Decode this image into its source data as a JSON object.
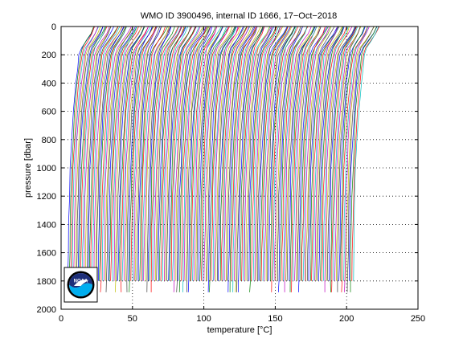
{
  "chart_data": {
    "type": "line",
    "title": "WMO ID 3900496, internal ID 1666, 17−Oct−2018",
    "xlabel": "temperature [°C]",
    "ylabel": "pressure [dbar]",
    "xlim": [
      0,
      250
    ],
    "ylim": [
      0,
      2000
    ],
    "y_reversed": true,
    "x_ticks": [
      "0",
      "50",
      "100",
      "150",
      "200",
      "250"
    ],
    "y_ticks": [
      "0",
      "200",
      "400",
      "600",
      "800",
      "1000",
      "1200",
      "1400",
      "1600",
      "1800",
      "2000"
    ],
    "grid": true,
    "grid_style": "dotted",
    "series_colors": [
      "#0000ff",
      "#008000",
      "#ff0000",
      "#00bfbf",
      "#bf00bf",
      "#bfbf00",
      "#404040"
    ],
    "profile_description": "waterfall of offset temperature profiles",
    "profile_count": 200,
    "profile_offset_start": 3,
    "profile_offset_end": 203,
    "profile_shape": {
      "pressure": [
        0,
        50,
        100,
        150,
        200,
        300,
        400,
        600,
        800,
        1000,
        1200,
        1400,
        1600,
        1800,
        1880
      ],
      "temperature_anomaly": [
        19,
        17,
        14,
        11,
        9.6,
        8.4,
        7.2,
        5.4,
        4.3,
        3.4,
        2.8,
        2.4,
        2.05,
        1.8,
        1.7
      ]
    },
    "logo": {
      "text": "NOAA",
      "outer_color": "#000000",
      "top_color": "#1e2f7a",
      "bottom_color": "#00aeef",
      "icon": "noaa-logo-icon"
    }
  }
}
